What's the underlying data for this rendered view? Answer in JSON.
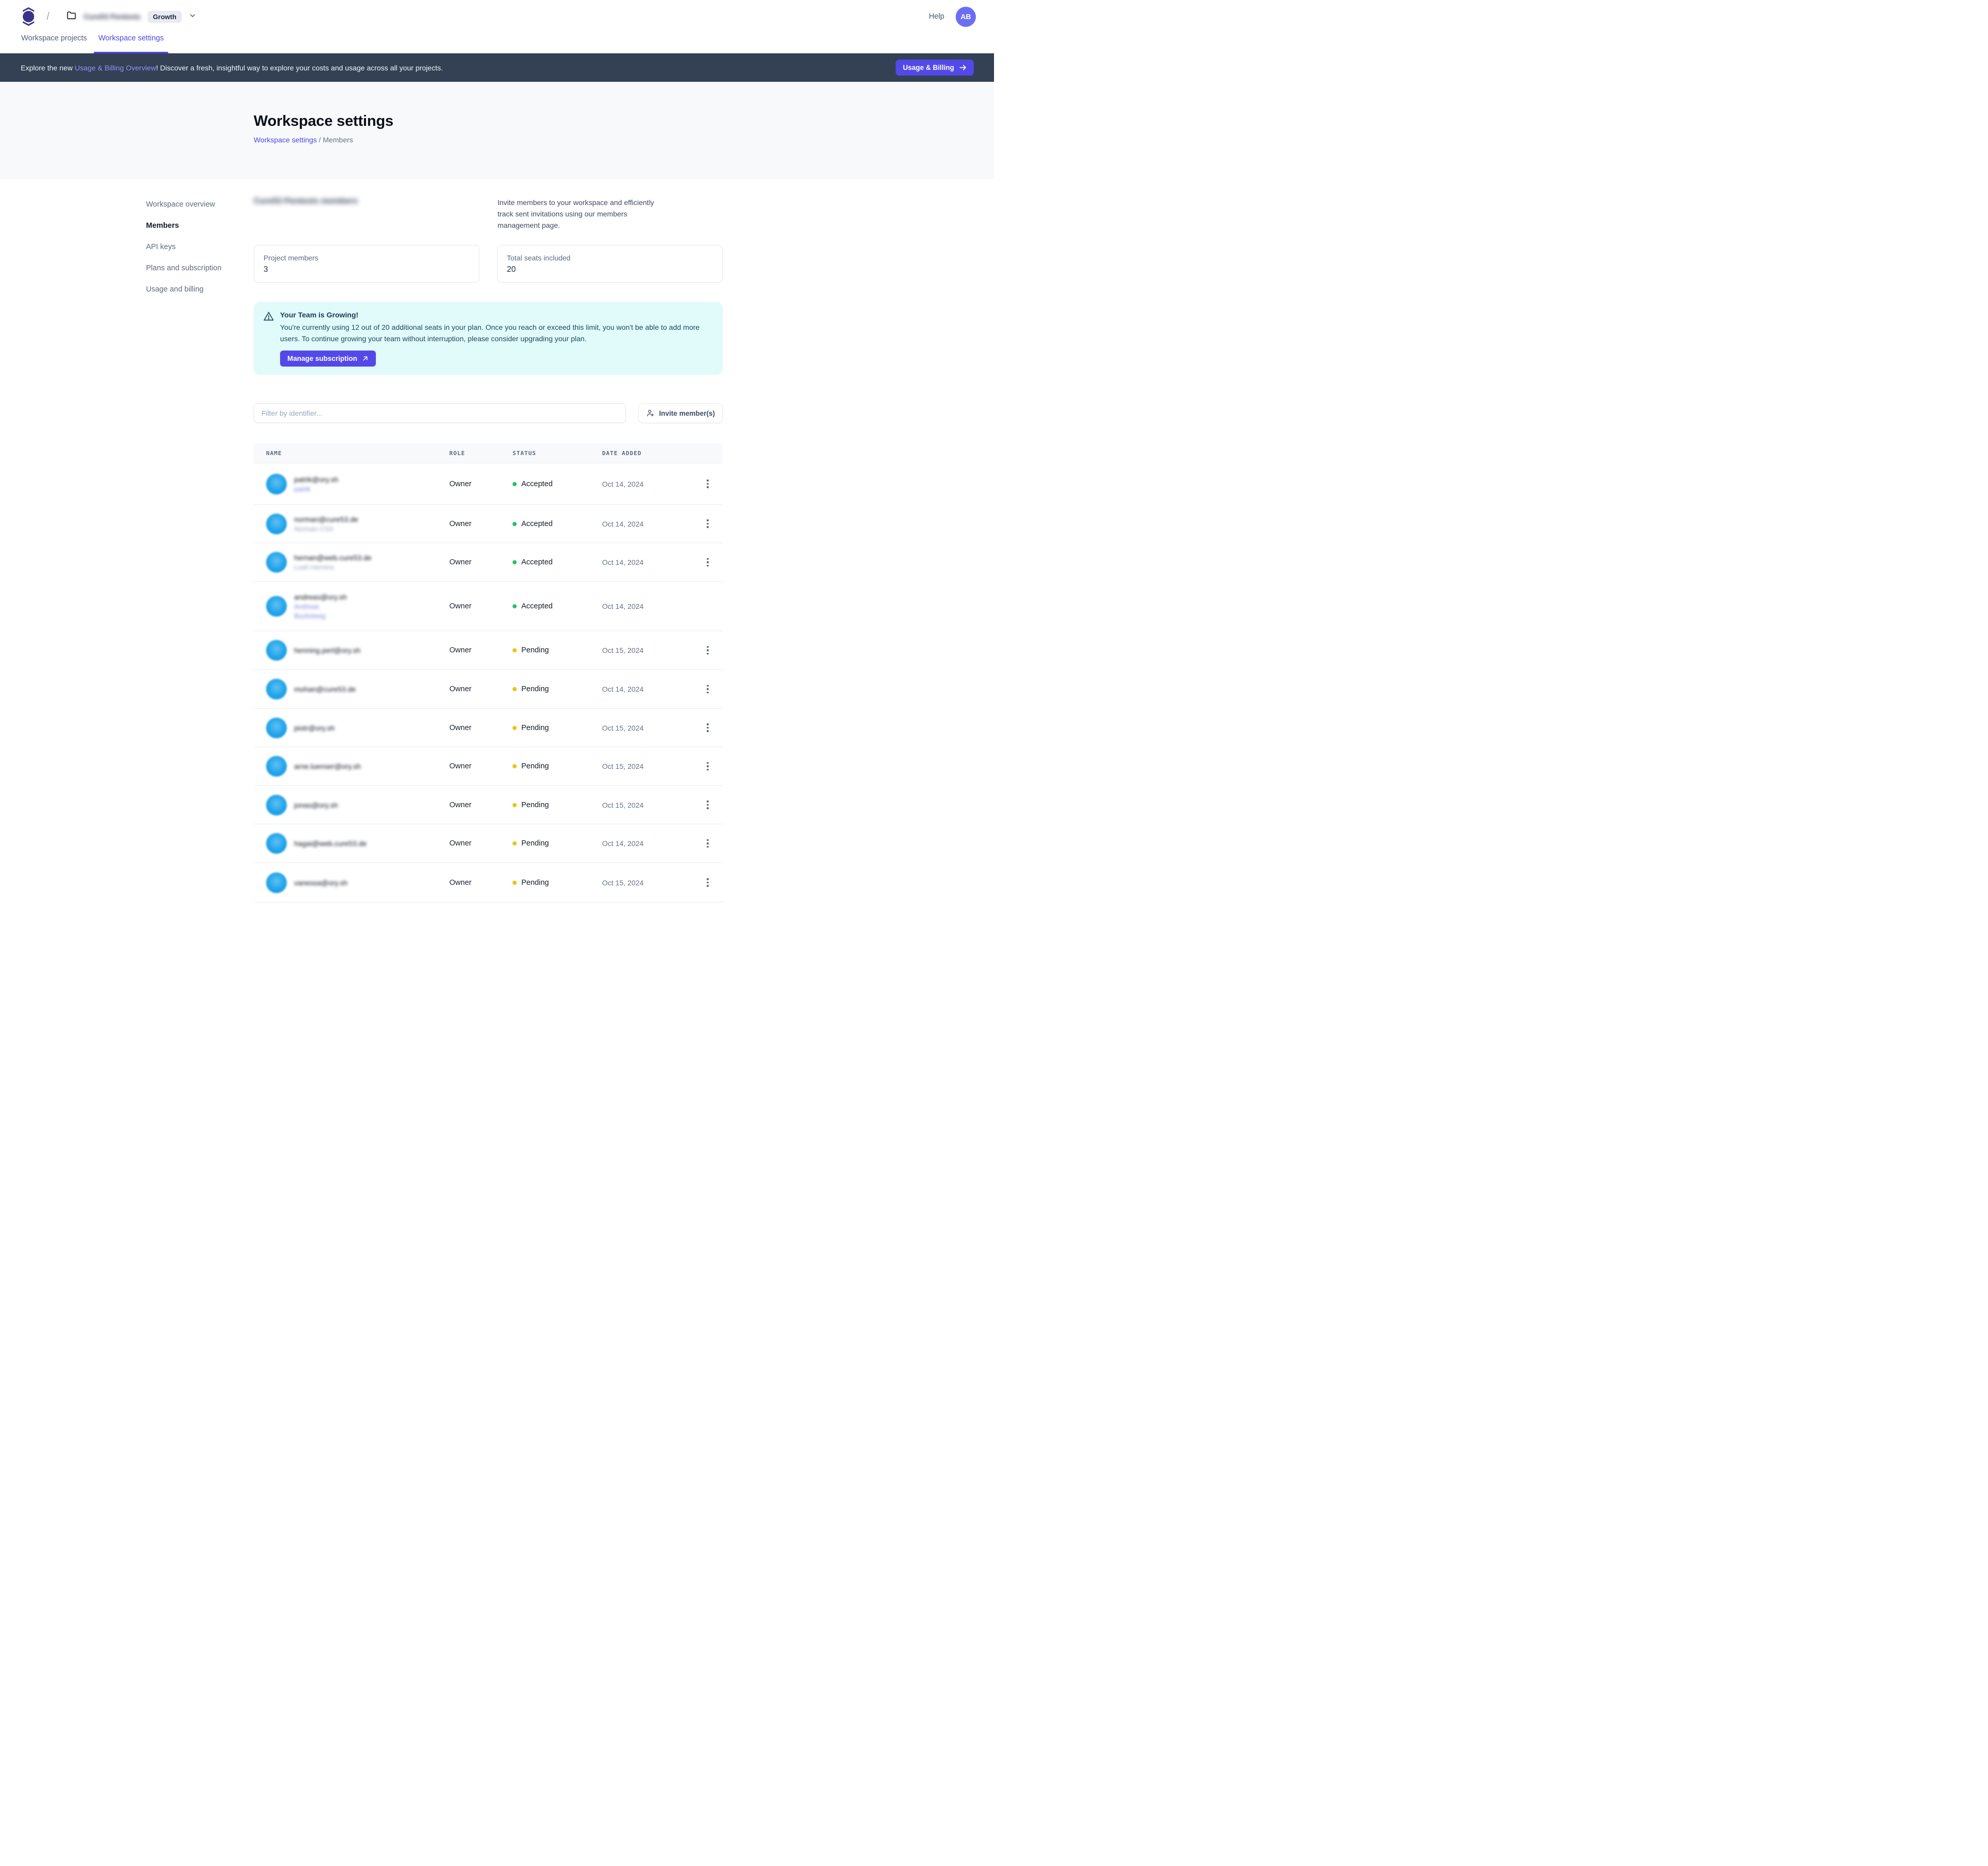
{
  "topnav": {
    "breadcrumb_separator": "/",
    "workspace_name": "Cure53 Pentests",
    "workspace_name_blurred": true,
    "environment_badge": "Growth",
    "help_label": "Help",
    "avatar_initials": "AB"
  },
  "tabs": [
    {
      "label": "Workspace projects",
      "active": false
    },
    {
      "label": "Workspace settings",
      "active": true
    }
  ],
  "banner": {
    "text_prefix": "Explore the new ",
    "link_text": "Usage & Billing Overview",
    "text_suffix": "! Discover a fresh, insightful way to explore your costs and usage across all your projects.",
    "button_label": "Usage & Billing"
  },
  "hero": {
    "title": "Workspace settings",
    "breadcrumb_link": "Workspace settings",
    "breadcrumb_rest": " / Members"
  },
  "sidebar": {
    "items": [
      {
        "label": "Workspace overview",
        "active": false
      },
      {
        "label": "Members",
        "active": true
      },
      {
        "label": "API keys",
        "active": false
      },
      {
        "label": "Plans and subscription",
        "active": false
      },
      {
        "label": "Usage and billing",
        "active": false
      }
    ]
  },
  "members": {
    "title": "Cure53 Pentests members",
    "title_blurred": true,
    "description": "Invite members to your workspace and efficiently track sent invitations using our members management page.",
    "stats": [
      {
        "label": "Project members",
        "value": "3"
      },
      {
        "label": "Total seats included",
        "value": "20"
      }
    ]
  },
  "growing": {
    "title": "Your Team is Growing!",
    "body": "You're currently using 12 out of 20 additional seats in your plan. Once you reach or exceed this limit, you won't be able to add more users. To continue growing your team without interruption, please consider upgrading your plan.",
    "button_label": "Manage subscription"
  },
  "toolbar": {
    "filter_placeholder": "Filter by identifier...",
    "invite_label": "Invite member(s)"
  },
  "table": {
    "columns": [
      "NAME",
      "ROLE",
      "STATUS",
      "DATE ADDED"
    ],
    "rows": [
      {
        "email": "patrik@ory.sh",
        "email_blurred": true,
        "secondary": [
          "patrik"
        ],
        "secondary_style": "indigo",
        "role": "Owner",
        "status": "Accepted",
        "date": "Oct 14, 2024",
        "has_menu": true,
        "height": 80
      },
      {
        "email": "norman@cure53.de",
        "email_blurred": true,
        "secondary": [
          "Norman CS3"
        ],
        "secondary_style": "gray",
        "role": "Owner",
        "status": "Accepted",
        "date": "Oct 14, 2024",
        "has_menu": true,
        "height": 74
      },
      {
        "email": "hernan@web.cure53.de",
        "email_blurred": true,
        "secondary": [
          "Luah Herrera"
        ],
        "secondary_style": "gray",
        "role": "Owner",
        "status": "Accepted",
        "date": "Oct 14, 2024",
        "has_menu": true,
        "height": 75
      },
      {
        "email": "andreas@ory.sh",
        "email_blurred": true,
        "secondary": [
          "Andreas",
          "Bucksteeg"
        ],
        "secondary_style": "indigo",
        "role": "Owner",
        "status": "Accepted",
        "date": "Oct 14, 2024",
        "has_menu": false,
        "height": 95
      },
      {
        "email": "henning.perl@ory.sh",
        "email_blurred": true,
        "secondary": [],
        "secondary_style": "gray",
        "role": "Owner",
        "status": "Pending",
        "date": "Oct 15, 2024",
        "has_menu": true,
        "height": 75
      },
      {
        "email": "mohan@cure53.de",
        "email_blurred": true,
        "secondary": [],
        "secondary_style": "gray",
        "role": "Owner",
        "status": "Pending",
        "date": "Oct 14, 2024",
        "has_menu": true,
        "height": 75
      },
      {
        "email": "piotr@ory.sh",
        "email_blurred": true,
        "secondary": [],
        "secondary_style": "gray",
        "role": "Owner",
        "status": "Pending",
        "date": "Oct 15, 2024",
        "has_menu": true,
        "height": 74
      },
      {
        "email": "arne.luenser@ory.sh",
        "email_blurred": true,
        "secondary": [],
        "secondary_style": "gray",
        "role": "Owner",
        "status": "Pending",
        "date": "Oct 15, 2024",
        "has_menu": true,
        "height": 75
      },
      {
        "email": "jonas@ory.sh",
        "email_blurred": true,
        "secondary": [],
        "secondary_style": "gray",
        "role": "Owner",
        "status": "Pending",
        "date": "Oct 15, 2024",
        "has_menu": true,
        "height": 74
      },
      {
        "email": "hagai@web.cure53.de",
        "email_blurred": true,
        "secondary": [],
        "secondary_style": "gray",
        "role": "Owner",
        "status": "Pending",
        "date": "Oct 14, 2024",
        "has_menu": true,
        "height": 75
      },
      {
        "email": "vanessa@ory.sh",
        "email_blurred": true,
        "secondary": [],
        "secondary_style": "gray",
        "role": "Owner",
        "status": "Pending",
        "date": "Oct 15, 2024",
        "has_menu": true,
        "height": 76
      }
    ]
  },
  "colors": {
    "accent_indigo": "#5349e8",
    "link_indigo": "#4f46e5",
    "banner_bg": "#344054",
    "banner_link": "#8e93f5",
    "hero_bg": "#f8f9fb",
    "info_box_bg": "#e1fafa",
    "info_box_text": "#1d4a5f",
    "status_accepted": "#25c365",
    "status_pending": "#eec213",
    "avatar_blue": "#1b9fe8",
    "topbar_avatar_bg": "#6b6ef3",
    "logo_indigo": "#3a3488"
  }
}
